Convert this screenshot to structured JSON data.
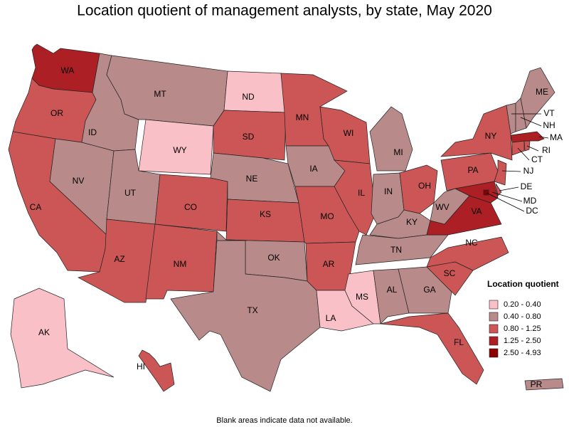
{
  "title": "Location quotient of management analysts, by state, May 2020",
  "note": "Blank areas indicate data not available.",
  "legend": {
    "title": "Location quotient",
    "bins": [
      {
        "label": "0.20 - 0.40",
        "color": "#f9c0c8"
      },
      {
        "label": "0.40 - 0.80",
        "color": "#b98a8a"
      },
      {
        "label": "0.80 - 1.25",
        "color": "#cc5656"
      },
      {
        "label": "1.25 - 2.50",
        "color": "#ac1f24"
      },
      {
        "label": "2.50 - 4.93",
        "color": "#8b0000"
      }
    ]
  },
  "states": [
    {
      "abbr": "WA",
      "bin": 3
    },
    {
      "abbr": "OR",
      "bin": 2
    },
    {
      "abbr": "CA",
      "bin": 2
    },
    {
      "abbr": "NV",
      "bin": 1
    },
    {
      "abbr": "ID",
      "bin": 1
    },
    {
      "abbr": "MT",
      "bin": 1
    },
    {
      "abbr": "WY",
      "bin": 0
    },
    {
      "abbr": "UT",
      "bin": 1
    },
    {
      "abbr": "CO",
      "bin": 2
    },
    {
      "abbr": "AZ",
      "bin": 2
    },
    {
      "abbr": "NM",
      "bin": 2
    },
    {
      "abbr": "ND",
      "bin": 0
    },
    {
      "abbr": "SD",
      "bin": 2
    },
    {
      "abbr": "NE",
      "bin": 1
    },
    {
      "abbr": "KS",
      "bin": 2
    },
    {
      "abbr": "OK",
      "bin": 1
    },
    {
      "abbr": "TX",
      "bin": 1
    },
    {
      "abbr": "MN",
      "bin": 2
    },
    {
      "abbr": "IA",
      "bin": 1
    },
    {
      "abbr": "MO",
      "bin": 2
    },
    {
      "abbr": "AR",
      "bin": 2
    },
    {
      "abbr": "LA",
      "bin": 0
    },
    {
      "abbr": "MS",
      "bin": 0
    },
    {
      "abbr": "WI",
      "bin": 2
    },
    {
      "abbr": "IL",
      "bin": 2
    },
    {
      "abbr": "MI",
      "bin": 1
    },
    {
      "abbr": "IN",
      "bin": 1
    },
    {
      "abbr": "OH",
      "bin": 2
    },
    {
      "abbr": "KY",
      "bin": 1
    },
    {
      "abbr": "TN",
      "bin": 1
    },
    {
      "abbr": "AL",
      "bin": 1
    },
    {
      "abbr": "GA",
      "bin": 1
    },
    {
      "abbr": "FL",
      "bin": 2
    },
    {
      "abbr": "SC",
      "bin": 2
    },
    {
      "abbr": "NC",
      "bin": 2
    },
    {
      "abbr": "VA",
      "bin": 3
    },
    {
      "abbr": "WV",
      "bin": 1
    },
    {
      "abbr": "PA",
      "bin": 2
    },
    {
      "abbr": "NY",
      "bin": 2
    },
    {
      "abbr": "NJ",
      "bin": 2
    },
    {
      "abbr": "DE",
      "bin": 2
    },
    {
      "abbr": "MD",
      "bin": 3
    },
    {
      "abbr": "DC",
      "bin": 4
    },
    {
      "abbr": "CT",
      "bin": 2
    },
    {
      "abbr": "RI",
      "bin": 2
    },
    {
      "abbr": "MA",
      "bin": 3
    },
    {
      "abbr": "VT",
      "bin": 1
    },
    {
      "abbr": "NH",
      "bin": 1
    },
    {
      "abbr": "ME",
      "bin": 1
    },
    {
      "abbr": "AK",
      "bin": 0
    },
    {
      "abbr": "HI",
      "bin": 2
    },
    {
      "abbr": "PR",
      "bin": 1
    }
  ]
}
